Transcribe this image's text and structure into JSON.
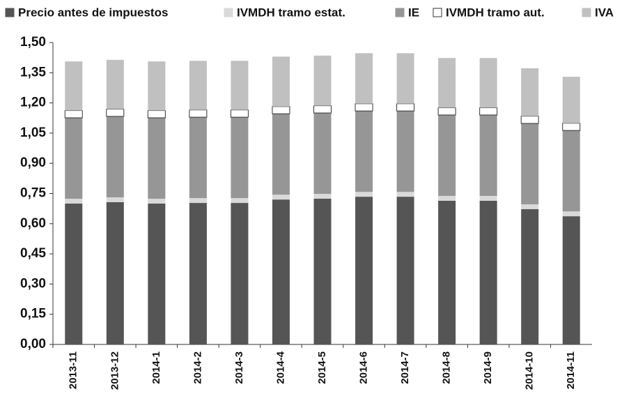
{
  "chart_data": {
    "type": "stacked_bar",
    "categories": [
      "2013-11",
      "2013-12",
      "2014-1",
      "2014-2",
      "2014-3",
      "2014-4",
      "2014-5",
      "2014-6",
      "2014-7",
      "2014-8",
      "2014-9",
      "2014-10",
      "2014-11"
    ],
    "series": [
      {
        "name": "Precio antes de impuestos",
        "color": "#555555",
        "values": [
          0.7,
          0.707,
          0.7,
          0.703,
          0.703,
          0.72,
          0.724,
          0.734,
          0.734,
          0.714,
          0.714,
          0.672,
          0.637
        ]
      },
      {
        "name": "IVMDH tramo estat.",
        "color": "#d9d9d9",
        "values": [
          0.024,
          0.024,
          0.024,
          0.024,
          0.024,
          0.024,
          0.024,
          0.024,
          0.024,
          0.024,
          0.024,
          0.024,
          0.024
        ]
      },
      {
        "name": "IE",
        "color": "#969696",
        "values": [
          0.402,
          0.402,
          0.402,
          0.402,
          0.402,
          0.402,
          0.402,
          0.402,
          0.402,
          0.402,
          0.402,
          0.402,
          0.402
        ]
      },
      {
        "name": "IVMDH tramo aut.",
        "color": "#ffffff",
        "values": [
          0.036,
          0.036,
          0.036,
          0.036,
          0.036,
          0.036,
          0.036,
          0.036,
          0.036,
          0.036,
          0.036,
          0.036,
          0.036
        ]
      },
      {
        "name": "IVA",
        "color": "#c0c0c0",
        "values": [
          0.244,
          0.245,
          0.244,
          0.244,
          0.244,
          0.248,
          0.249,
          0.251,
          0.251,
          0.247,
          0.247,
          0.238,
          0.231
        ]
      }
    ],
    "ylim": [
      0,
      1.5
    ],
    "yticks": [
      {
        "value": 0,
        "label": "0,00"
      },
      {
        "value": 0.15,
        "label": "0,15"
      },
      {
        "value": 0.3,
        "label": "0,30"
      },
      {
        "value": 0.45,
        "label": "0,45"
      },
      {
        "value": 0.6,
        "label": "0,60"
      },
      {
        "value": 0.75,
        "label": "0,75"
      },
      {
        "value": 0.9,
        "label": "0,90"
      },
      {
        "value": 1.05,
        "label": "1,05"
      },
      {
        "value": 1.2,
        "label": "1,20"
      },
      {
        "value": 1.35,
        "label": "1,35"
      },
      {
        "value": 1.5,
        "label": "1,50"
      }
    ],
    "legend": "top"
  }
}
